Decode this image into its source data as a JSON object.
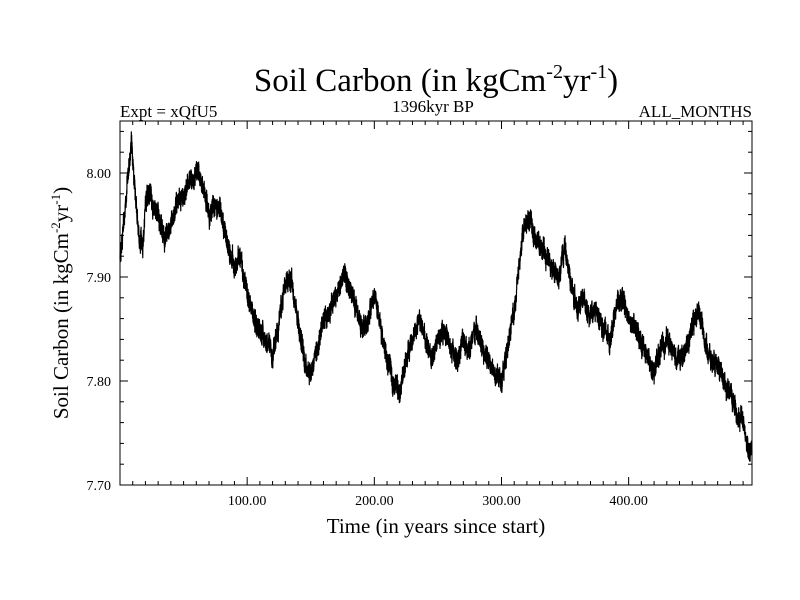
{
  "chart_data": {
    "type": "line",
    "title": {
      "main": "Soil Carbon (in kgCm",
      "exp1": "-2",
      "mid": "yr",
      "exp2": "-1",
      "end": ")"
    },
    "subtitle_left": "Expt = xQfU5",
    "subtitle_center": "1396kyr BP",
    "subtitle_right": "ALL_MONTHS",
    "xlabel": "Time (in years since start)",
    "ylabel": {
      "main": "Soil Carbon (in kgCm",
      "exp1": "-2",
      "mid": "yr",
      "exp2": "-1",
      "end": ")"
    },
    "xlim": [
      0,
      497
    ],
    "ylim": [
      7.7,
      8.05
    ],
    "x_ticks": [
      100,
      200,
      300,
      400
    ],
    "x_tick_labels": [
      "100.00",
      "200.00",
      "300.00",
      "400.00"
    ],
    "y_ticks": [
      7.7,
      7.8,
      7.9,
      8.0
    ],
    "y_tick_labels": [
      "7.70",
      "7.80",
      "7.90",
      "8.00"
    ],
    "series": [
      {
        "name": "Soil Carbon",
        "color": "#000000",
        "x": [
          0,
          3,
          6,
          9,
          12,
          15,
          18,
          20,
          23,
          26,
          30,
          35,
          40,
          45,
          50,
          55,
          60,
          65,
          70,
          75,
          80,
          85,
          90,
          95,
          100,
          105,
          110,
          115,
          120,
          125,
          130,
          135,
          140,
          145,
          150,
          155,
          160,
          165,
          170,
          175,
          180,
          185,
          190,
          195,
          200,
          205,
          210,
          215,
          220,
          225,
          230,
          235,
          240,
          245,
          250,
          255,
          260,
          265,
          270,
          275,
          280,
          285,
          290,
          295,
          300,
          305,
          310,
          315,
          318,
          322,
          325,
          330,
          335,
          340,
          345,
          350,
          355,
          360,
          365,
          370,
          375,
          380,
          385,
          390,
          395,
          400,
          405,
          410,
          415,
          420,
          425,
          430,
          435,
          440,
          445,
          450,
          455,
          460,
          465,
          470,
          475,
          480,
          485,
          490,
          494,
          497
        ],
        "values": [
          7.92,
          7.95,
          7.99,
          8.03,
          7.98,
          7.94,
          7.93,
          7.97,
          7.98,
          7.97,
          7.96,
          7.94,
          7.95,
          7.97,
          7.98,
          7.99,
          8.0,
          7.99,
          7.96,
          7.97,
          7.96,
          7.93,
          7.91,
          7.92,
          7.88,
          7.86,
          7.85,
          7.84,
          7.82,
          7.86,
          7.89,
          7.9,
          7.86,
          7.82,
          7.81,
          7.83,
          7.86,
          7.87,
          7.88,
          7.9,
          7.89,
          7.87,
          7.85,
          7.86,
          7.88,
          7.85,
          7.82,
          7.8,
          7.79,
          7.82,
          7.84,
          7.86,
          7.84,
          7.82,
          7.84,
          7.85,
          7.83,
          7.82,
          7.84,
          7.83,
          7.85,
          7.83,
          7.82,
          7.81,
          7.8,
          7.83,
          7.87,
          7.92,
          7.95,
          7.96,
          7.94,
          7.93,
          7.92,
          7.91,
          7.9,
          7.93,
          7.89,
          7.87,
          7.88,
          7.86,
          7.87,
          7.85,
          7.84,
          7.87,
          7.88,
          7.86,
          7.85,
          7.84,
          7.82,
          7.81,
          7.83,
          7.84,
          7.83,
          7.82,
          7.83,
          7.85,
          7.87,
          7.84,
          7.82,
          7.81,
          7.8,
          7.79,
          7.77,
          7.76,
          7.73,
          7.74
        ]
      }
    ]
  }
}
